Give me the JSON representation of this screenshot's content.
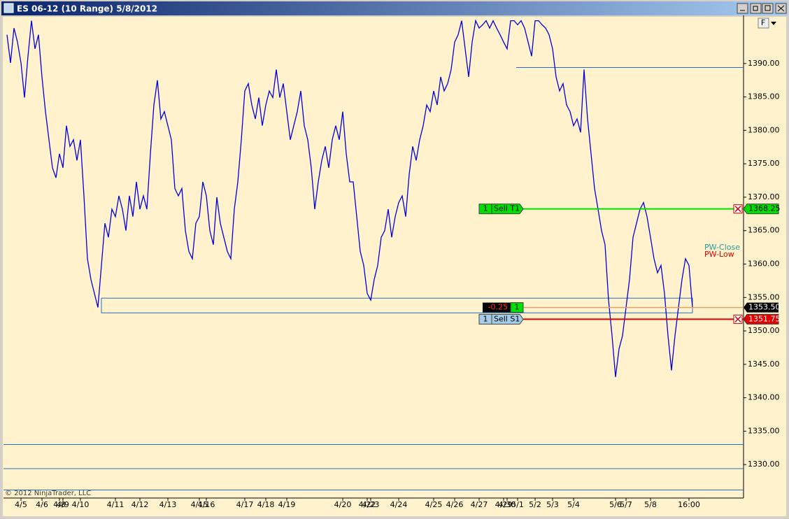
{
  "window": {
    "title": "ES 06-12 (10 Range)  5/8/2012",
    "button": "F"
  },
  "copyright": "© 2012 NinjaTrader, LLC",
  "chart_data": {
    "type": "line",
    "categories": [
      null,
      null,
      null,
      null,
      "4/5",
      null,
      null,
      null,
      null,
      null,
      "4/6",
      null,
      null,
      null,
      null,
      "4/8",
      "4/9",
      null,
      null,
      null,
      null,
      "4/10",
      null,
      null,
      null,
      null,
      null,
      null,
      null,
      null,
      null,
      "4/11",
      null,
      null,
      null,
      null,
      null,
      null,
      "4/12",
      null,
      null,
      null,
      null,
      null,
      null,
      null,
      "4/13",
      null,
      null,
      null,
      null,
      null,
      null,
      null,
      null,
      "4/15",
      null,
      "4/16",
      null,
      null,
      null,
      null,
      null,
      null,
      null,
      null,
      null,
      null,
      "4/17",
      null,
      null,
      null,
      null,
      null,
      "4/18",
      null,
      null,
      null,
      null,
      null,
      "4/19",
      null,
      null,
      null,
      null,
      null,
      null,
      null,
      null,
      null,
      null,
      null,
      null,
      null,
      null,
      null,
      "4/20",
      null,
      null,
      null,
      null,
      null,
      null,
      "4/22",
      "4/23",
      null,
      null,
      null,
      null,
      null,
      null,
      null,
      "4/24",
      null,
      null,
      null,
      null,
      null,
      null,
      null,
      null,
      null,
      "4/25",
      null,
      null,
      null,
      null,
      null,
      "4/26",
      null,
      null,
      null,
      null,
      null,
      null,
      "4/27",
      null,
      null,
      null,
      null,
      null,
      null,
      "4/29",
      "4/30",
      null,
      null,
      "5/1",
      null,
      null,
      null,
      null,
      "5/2",
      null,
      null,
      null,
      null,
      "5/3",
      null,
      null,
      null,
      null,
      null,
      "5/4",
      null,
      null,
      null,
      null,
      null,
      null,
      null,
      null,
      null,
      null,
      null,
      "5/6",
      null,
      null,
      "5/7",
      null,
      null,
      null,
      null,
      null,
      null,
      "5/8",
      null,
      null,
      null,
      null,
      null,
      null,
      null,
      null,
      null,
      null,
      "16:00",
      null
    ],
    "series": [
      {
        "name": "ES 06-12",
        "color": "#0000e0",
        "values": [
          1394.3,
          1390.1,
          1395.3,
          1393.2,
          1390.1,
          1384.9,
          1391.1,
          1396.4,
          1392.2,
          1394.3,
          1388.0,
          1382.8,
          1378.6,
          1374.4,
          1372.9,
          1376.5,
          1374.4,
          1380.7,
          1377.6,
          1378.6,
          1375.5,
          1378.6,
          1370.2,
          1360.8,
          1357.7,
          1355.6,
          1353.5,
          1359.8,
          1366.1,
          1364.0,
          1368.2,
          1367.1,
          1370.2,
          1368.2,
          1365.0,
          1370.2,
          1367.1,
          1372.3,
          1368.2,
          1370.2,
          1368.2,
          1376.5,
          1383.8,
          1387.5,
          1381.7,
          1382.8,
          1380.7,
          1378.6,
          1371.3,
          1370.2,
          1371.3,
          1365.0,
          1361.9,
          1360.8,
          1366.1,
          1367.1,
          1372.3,
          1370.2,
          1365.0,
          1362.9,
          1370.0,
          1366.1,
          1364.0,
          1361.9,
          1360.8,
          1368.2,
          1372.3,
          1378.6,
          1385.9,
          1387.0,
          1383.8,
          1381.7,
          1384.9,
          1380.7,
          1383.8,
          1385.9,
          1384.9,
          1389.1,
          1384.9,
          1387.0,
          1382.8,
          1378.6,
          1380.7,
          1382.8,
          1385.9,
          1380.7,
          1378.6,
          1374.4,
          1368.2,
          1372.3,
          1375.5,
          1377.6,
          1374.4,
          1378.6,
          1380.7,
          1378.6,
          1382.8,
          1376.5,
          1372.3,
          1372.3,
          1367.1,
          1361.9,
          1359.8,
          1355.6,
          1354.6,
          1357.7,
          1359.8,
          1364.0,
          1365.0,
          1368.2,
          1364.0,
          1367.1,
          1369.2,
          1370.2,
          1367.1,
          1373.4,
          1377.6,
          1375.5,
          1378.6,
          1380.7,
          1383.8,
          1382.8,
          1385.9,
          1383.8,
          1388.0,
          1385.9,
          1387.0,
          1389.1,
          1393.2,
          1394.3,
          1396.4,
          1392.2,
          1388.0,
          1393.2,
          1396.4,
          1395.3,
          1395.8,
          1396.4,
          1395.3,
          1396.4,
          1395.3,
          1394.3,
          1393.2,
          1392.2,
          1396.4,
          1396.4,
          1395.8,
          1396.4,
          1395.3,
          1393.2,
          1391.1,
          1396.4,
          1396.4,
          1395.8,
          1395.3,
          1394.3,
          1392.2,
          1388.0,
          1385.9,
          1387.0,
          1383.8,
          1382.8,
          1380.7,
          1381.7,
          1379.7,
          1389.1,
          1381.7,
          1376.5,
          1371.3,
          1368.2,
          1365.0,
          1362.9,
          1354.6,
          1349.3,
          1343.1,
          1347.3,
          1349.3,
          1353.5,
          1357.7,
          1364.0,
          1366.1,
          1368.2,
          1369.2,
          1367.1,
          1364.0,
          1360.8,
          1358.7,
          1359.8,
          1355.6,
          1349.3,
          1344.1,
          1349.3,
          1353.5,
          1357.7,
          1360.8,
          1359.8,
          1353.5
        ]
      }
    ],
    "ylim": [
      1325.0,
      1397.2
    ],
    "yticks": [
      {
        "value": 1330,
        "label": "1330.00"
      },
      {
        "value": 1335,
        "label": "1335.00"
      },
      {
        "value": 1340,
        "label": "1340.00"
      },
      {
        "value": 1345,
        "label": "1345.00"
      },
      {
        "value": 1350,
        "label": "1350.00"
      },
      {
        "value": 1355,
        "label": "1355.00"
      },
      {
        "value": 1360,
        "label": "1360.00"
      },
      {
        "value": 1365,
        "label": "1365.00"
      },
      {
        "value": 1370,
        "label": "1370.00"
      },
      {
        "value": 1375,
        "label": "1375.00"
      },
      {
        "value": 1380,
        "label": "1380.00"
      },
      {
        "value": 1385,
        "label": "1385.00"
      },
      {
        "value": 1390,
        "label": "1390.00"
      }
    ],
    "levels": [
      1389.4,
      1333.0,
      1329.4,
      1326.2
    ],
    "zone": [
      1352.7,
      1354.9
    ],
    "orders": [
      {
        "qty": 1,
        "label": "Sell T1",
        "price": 1368.25,
        "color": "#00e000"
      },
      {
        "qty": 1,
        "label": "Sell S1",
        "price": 1351.75,
        "color": "#e00000"
      }
    ],
    "position": {
      "pnl": -0.25,
      "qty": 1,
      "price": {
        "value": 1353.5,
        "label": "1353.50"
      }
    },
    "markers": [
      {
        "label": "PW-Close",
        "color": "#20a0a0"
      },
      {
        "label": "PW-Low",
        "color": "#e00000"
      }
    ]
  }
}
